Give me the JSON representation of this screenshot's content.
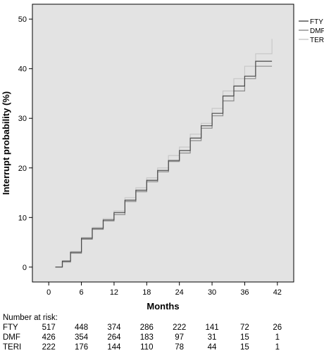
{
  "chart_data": {
    "type": "line",
    "title": "",
    "ylabel": "Interrupt probability (%)",
    "xlabel": "Months",
    "xlim": [
      -3,
      45
    ],
    "ylim": [
      -3,
      53
    ],
    "xticks": [
      0,
      6,
      12,
      18,
      24,
      30,
      36,
      42
    ],
    "yticks": [
      0,
      10,
      20,
      30,
      40,
      50
    ],
    "background": "#e3e3e3",
    "grid": false,
    "legend_position": "top-right",
    "series": [
      {
        "name": "FTY",
        "color": "#4a4a4a",
        "x": [
          1.2,
          2.5,
          4,
          6,
          8,
          10,
          12,
          14,
          16,
          18,
          20,
          22,
          24,
          26,
          28,
          30,
          32,
          34,
          36,
          38,
          41
        ],
        "y": [
          0,
          1.2,
          3,
          5.8,
          7.8,
          9.5,
          11,
          13.5,
          15.5,
          17.5,
          19.5,
          21.5,
          23.5,
          26,
          28.5,
          31,
          34.5,
          36.5,
          38.5,
          41.5,
          41.5
        ]
      },
      {
        "name": "DMF",
        "color": "#8c8c8c",
        "x": [
          1.2,
          2.5,
          4,
          6,
          8,
          10,
          12,
          14,
          16,
          18,
          20,
          22,
          24,
          26,
          28,
          30,
          32,
          34,
          36,
          38,
          41
        ],
        "y": [
          0,
          1,
          2.8,
          5.6,
          7.6,
          9.3,
          10.6,
          13.2,
          15.2,
          17.2,
          19.2,
          21.3,
          23,
          25.5,
          28,
          30.5,
          33.5,
          35.5,
          38,
          40.5,
          40.5
        ]
      },
      {
        "name": "TERI",
        "color": "#c8c8c8",
        "x": [
          1.2,
          2.5,
          4,
          6,
          8,
          10,
          12,
          14,
          16,
          18,
          20,
          22,
          24,
          26,
          28,
          30,
          32,
          34,
          36,
          38,
          41
        ],
        "y": [
          0,
          1.3,
          3.2,
          6,
          8,
          9.8,
          11.3,
          14,
          16,
          18,
          20,
          22.5,
          24.2,
          26.8,
          29,
          32,
          35.5,
          38,
          40.5,
          43,
          46
        ]
      }
    ]
  },
  "risk_table": {
    "title": "Number at risk:",
    "rows": [
      {
        "name": "FTY",
        "values": [
          "517",
          "448",
          "374",
          "286",
          "222",
          "141",
          "72",
          "26"
        ]
      },
      {
        "name": "DMF",
        "values": [
          "426",
          "354",
          "264",
          "183",
          "97",
          "31",
          "15",
          "1"
        ]
      },
      {
        "name": "TERI",
        "values": [
          "222",
          "176",
          "144",
          "110",
          "78",
          "44",
          "15",
          "1"
        ]
      }
    ]
  }
}
